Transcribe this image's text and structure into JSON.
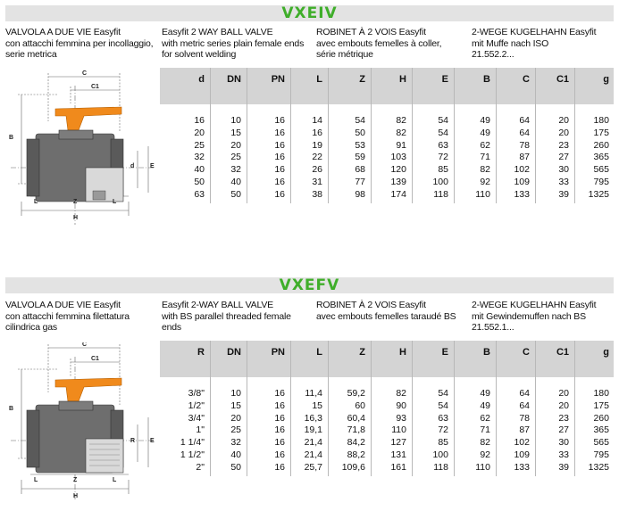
{
  "sections": [
    {
      "code": "VXEIV",
      "descriptions": [
        "VALVOLA A DUE VIE Easyfit\ncon attacchi femmina per incollaggio,\nserie metrica",
        "Easyfit 2 WAY BALL VALVE\nwith metric series plain female ends\nfor solvent welding",
        "ROBINET À 2 VOIS Easyfit\navec embouts femelles à coller,\nsérie métrique",
        "2-WEGE KUGELHAHN Easyfit\nmit Muffe nach ISO\n21.552.2..."
      ],
      "headers": [
        "d",
        "DN",
        "PN",
        "L",
        "Z",
        "H",
        "E",
        "B",
        "C",
        "C1",
        "g"
      ],
      "rows": [
        [
          "16",
          "10",
          "16",
          "14",
          "54",
          "82",
          "54",
          "49",
          "64",
          "20",
          "180"
        ],
        [
          "20",
          "15",
          "16",
          "16",
          "50",
          "82",
          "54",
          "49",
          "64",
          "20",
          "175"
        ],
        [
          "25",
          "20",
          "16",
          "19",
          "53",
          "91",
          "63",
          "62",
          "78",
          "23",
          "260"
        ],
        [
          "32",
          "25",
          "16",
          "22",
          "59",
          "103",
          "72",
          "71",
          "87",
          "27",
          "365"
        ],
        [
          "40",
          "32",
          "16",
          "26",
          "68",
          "120",
          "85",
          "82",
          "102",
          "30",
          "565"
        ],
        [
          "50",
          "40",
          "16",
          "31",
          "77",
          "139",
          "100",
          "92",
          "109",
          "33",
          "795"
        ],
        [
          "63",
          "50",
          "16",
          "38",
          "98",
          "174",
          "118",
          "110",
          "133",
          "39",
          "1325"
        ]
      ],
      "drawing_labels": [
        "C",
        "C1",
        "B",
        "E",
        "d",
        "L",
        "Z",
        "L",
        "H"
      ]
    },
    {
      "code": "VXEFV",
      "descriptions": [
        "VALVOLA A DUE VIE Easyfit\ncon attacchi femmina filettatura\ncilindrica gas",
        "Easyfit 2-WAY BALL VALVE\nwith BS parallel threaded female\nends",
        "ROBINET À 2 VOIS Easyfit\navec embouts femelles taraudé BS",
        "2-WEGE KUGELHAHN Easyfit\nmit Gewindemuffen nach BS\n21.552.1..."
      ],
      "headers": [
        "R",
        "DN",
        "PN",
        "L",
        "Z",
        "H",
        "E",
        "B",
        "C",
        "C1",
        "g"
      ],
      "rows": [
        [
          "3/8\"",
          "10",
          "16",
          "11,4",
          "59,2",
          "82",
          "54",
          "49",
          "64",
          "20",
          "180"
        ],
        [
          "1/2\"",
          "15",
          "16",
          "15",
          "60",
          "90",
          "54",
          "49",
          "64",
          "20",
          "175"
        ],
        [
          "3/4\"",
          "20",
          "16",
          "16,3",
          "60,4",
          "93",
          "63",
          "62",
          "78",
          "23",
          "260"
        ],
        [
          "1\"",
          "25",
          "16",
          "19,1",
          "71,8",
          "110",
          "72",
          "71",
          "87",
          "27",
          "365"
        ],
        [
          "1 1/4\"",
          "32",
          "16",
          "21,4",
          "84,2",
          "127",
          "85",
          "82",
          "102",
          "30",
          "565"
        ],
        [
          "1 1/2\"",
          "40",
          "16",
          "21,4",
          "88,2",
          "131",
          "100",
          "92",
          "109",
          "33",
          "795"
        ],
        [
          "2\"",
          "50",
          "16",
          "25,7",
          "109,6",
          "161",
          "118",
          "110",
          "133",
          "39",
          "1325"
        ]
      ],
      "drawing_labels": [
        "C",
        "C1",
        "B",
        "R",
        "E",
        "L",
        "Z",
        "L",
        "H"
      ]
    }
  ],
  "colors": {
    "code_green": "#3fae2a",
    "banner_gray": "#e3e3e3",
    "header_gray": "#d4d4d4",
    "handle_orange": "#f08a1c",
    "body_gray": "#6e6e6e"
  }
}
